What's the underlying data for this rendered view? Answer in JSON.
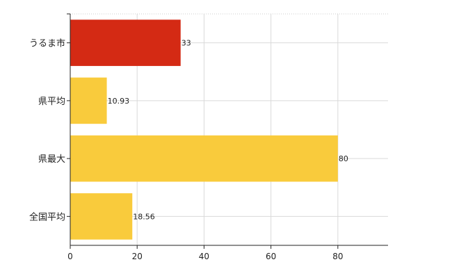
{
  "chart_data": {
    "type": "bar",
    "orientation": "horizontal",
    "categories": [
      "うるま市",
      "県平均",
      "県最大",
      "全国平均"
    ],
    "values": [
      33,
      10.93,
      80,
      18.56
    ],
    "value_labels": [
      "33",
      "10.93",
      "80",
      "18.56"
    ],
    "bar_colors": [
      "#d42a14",
      "#f9cb3c",
      "#f9cb3c",
      "#f9cb3c"
    ],
    "xlim": [
      0,
      95
    ],
    "xticks": [
      0,
      20,
      40,
      60,
      80
    ],
    "grid": true,
    "title": "",
    "xlabel": "",
    "ylabel": ""
  }
}
